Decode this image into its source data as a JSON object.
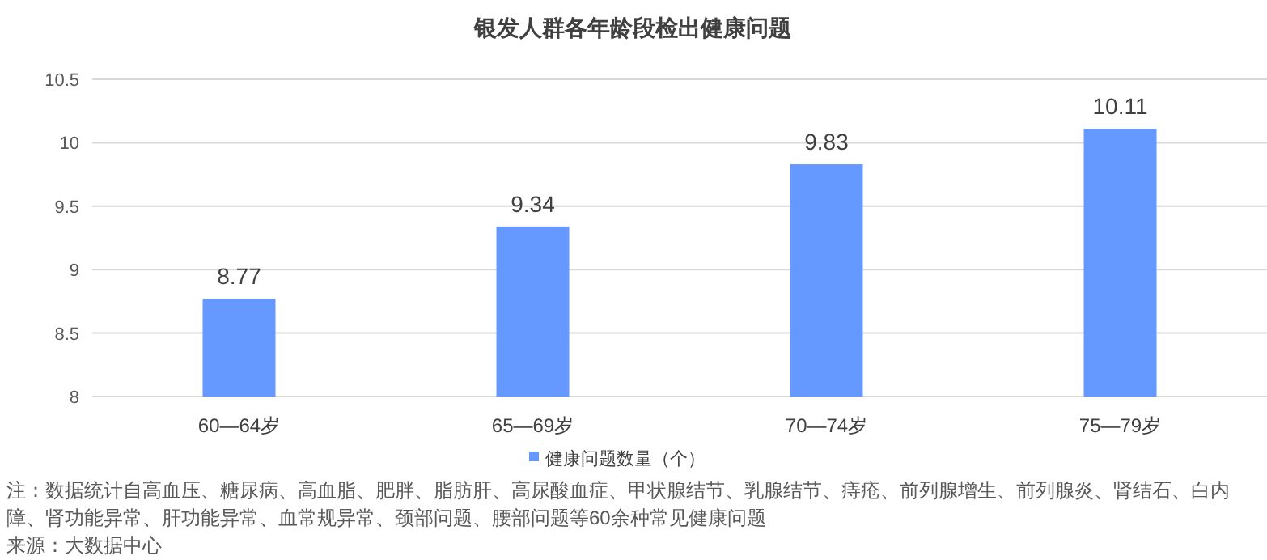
{
  "chart_data": {
    "type": "bar",
    "title": "银发人群各年龄段检出健康问题",
    "categories": [
      "60—64岁",
      "65—69岁",
      "70—74岁",
      "75—79岁"
    ],
    "series": [
      {
        "name": "健康问题数量（个）",
        "color": "#6699ff",
        "values": [
          8.77,
          9.34,
          9.83,
          10.11
        ]
      }
    ],
    "ylim": [
      8,
      10.5
    ],
    "yticks": [
      8,
      8.5,
      9,
      9.5,
      10,
      10.5
    ],
    "grid": "y",
    "legend": "bottom",
    "data_labels": true,
    "annotations": [
      "注：数据统计自高血压、糖尿病、高血脂、肥胖、脂肪肝、高尿酸血症、甲状腺结节、乳腺结节、痔疮、前列腺增生、前列腺炎、肾结石、白内障、肾功能异常、肝功能异常、血常规异常、颈部问题、腰部问题等60余种常见健康问题",
      "来源：大数据中心"
    ]
  }
}
